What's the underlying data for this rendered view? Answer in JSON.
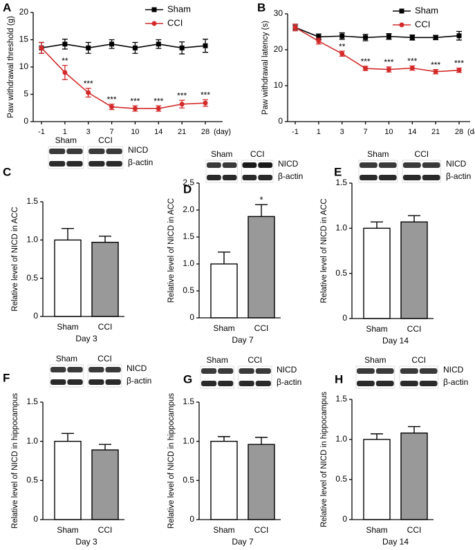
{
  "chart_data": [
    {
      "type": "line",
      "panel": "A",
      "ylabel": "Paw withdrawal threshold (g)",
      "xlabel": "(day)",
      "categories": [
        "-1",
        "1",
        "3",
        "7",
        "10",
        "14",
        "21",
        "28"
      ],
      "ylim": [
        0,
        20
      ],
      "yticks": [
        0,
        5,
        10,
        15,
        20
      ],
      "series": [
        {
          "name": "Sham",
          "color": "#000000",
          "marker": "square",
          "values": [
            13.5,
            14.2,
            13.5,
            14.2,
            13.5,
            14.2,
            13.5,
            13.9
          ],
          "errors": [
            1.0,
            0.9,
            1.0,
            0.8,
            1.0,
            0.8,
            1.1,
            1.2
          ]
        },
        {
          "name": "CCI",
          "color": "#d42a2a",
          "marker": "circle",
          "values": [
            13.5,
            9.0,
            5.3,
            2.7,
            2.4,
            2.4,
            3.2,
            3.4
          ],
          "errors": [
            1.0,
            1.3,
            0.8,
            0.5,
            0.5,
            0.5,
            0.7,
            0.6
          ],
          "significance": [
            null,
            "**",
            "***",
            "***",
            "***",
            "***",
            "***",
            "***"
          ]
        }
      ]
    },
    {
      "type": "line",
      "panel": "B",
      "ylabel": "Paw withdrawal latency (s)",
      "xlabel": "(day)",
      "categories": [
        "-1",
        "1",
        "3",
        "7",
        "10",
        "14",
        "21",
        "28"
      ],
      "ylim": [
        0,
        30
      ],
      "yticks": [
        0,
        10,
        20,
        30
      ],
      "series": [
        {
          "name": "Sham",
          "color": "#000000",
          "marker": "square",
          "values": [
            26.2,
            23.6,
            23.8,
            23.4,
            23.7,
            23.4,
            23.4,
            23.9
          ],
          "errors": [
            0.9,
            0.8,
            0.9,
            0.9,
            0.8,
            0.7,
            0.6,
            1.2
          ]
        },
        {
          "name": "CCI",
          "color": "#d42a2a",
          "marker": "circle",
          "values": [
            26.2,
            22.4,
            18.9,
            14.8,
            14.5,
            14.9,
            13.9,
            14.3
          ],
          "errors": [
            0.9,
            0.8,
            0.7,
            0.6,
            0.7,
            0.6,
            0.6,
            0.6
          ],
          "significance": [
            null,
            null,
            "**",
            "***",
            "***",
            "***",
            "***",
            "***"
          ]
        }
      ]
    },
    {
      "type": "bar",
      "panel": "C",
      "ylabel": "Relative level of NICD in ACC",
      "xlabel": "Day 3",
      "blot_groups": [
        "Sham",
        "CCI"
      ],
      "blot_bands": [
        "NICD",
        "β-actin"
      ],
      "categories": [
        "Sham",
        "CCI"
      ],
      "colors": [
        "#ffffff",
        "#999999"
      ],
      "values": [
        1.0,
        0.97
      ],
      "errors": [
        0.15,
        0.08
      ],
      "ylim": [
        0,
        1.5
      ],
      "yticks": [
        0,
        0.5,
        {
          "value": 1,
          "label": "1.0"
        },
        1.5
      ]
    },
    {
      "type": "bar",
      "panel": "D",
      "ylabel": "Relative level of NICD in ACC",
      "xlabel": "Day 7",
      "blot_groups": [
        "Sham",
        "CCI"
      ],
      "blot_bands": [
        "NICD",
        "β-actin"
      ],
      "categories": [
        "Sham",
        "CCI"
      ],
      "colors": [
        "#ffffff",
        "#999999"
      ],
      "values": [
        1.0,
        1.88
      ],
      "errors": [
        0.22,
        0.22
      ],
      "significance": [
        null,
        "*"
      ],
      "ylim": [
        0,
        2.5
      ],
      "yticks": [
        0,
        0.5,
        {
          "value": 1,
          "label": "1.0"
        },
        1.5,
        {
          "value": 2,
          "label": "2.0"
        },
        2.5
      ]
    },
    {
      "type": "bar",
      "panel": "E",
      "ylabel": "Relative level of NICD in ACC",
      "xlabel": "Day 14",
      "blot_groups": [
        "Sham",
        "CCI"
      ],
      "blot_bands": [
        "NICD",
        "β-actin"
      ],
      "categories": [
        "Sham",
        "CCI"
      ],
      "colors": [
        "#ffffff",
        "#999999"
      ],
      "values": [
        1.0,
        1.07
      ],
      "errors": [
        0.07,
        0.07
      ],
      "ylim": [
        0,
        1.5
      ],
      "yticks": [
        0,
        0.5,
        {
          "value": 1,
          "label": "1.0"
        },
        1.5
      ]
    },
    {
      "type": "bar",
      "panel": "F",
      "ylabel": "Relative level of NICD in hippocampus",
      "xlabel": "Day 3",
      "blot_groups": [
        "Sham",
        "CCI"
      ],
      "blot_bands": [
        "NICD",
        "β-actin"
      ],
      "categories": [
        "Sham",
        "CCI"
      ],
      "colors": [
        "#ffffff",
        "#999999"
      ],
      "values": [
        1.0,
        0.89
      ],
      "errors": [
        0.1,
        0.07
      ],
      "ylim": [
        0,
        1.5
      ],
      "yticks": [
        0,
        0.5,
        {
          "value": 1,
          "label": "1.0"
        },
        1.5
      ]
    },
    {
      "type": "bar",
      "panel": "G",
      "ylabel": "Relative level of NICD in hippocampus",
      "xlabel": "Day 7",
      "blot_groups": [
        "Sham",
        "CCI"
      ],
      "blot_bands": [
        "NICD",
        "β-actin"
      ],
      "categories": [
        "Sham",
        "CCI"
      ],
      "colors": [
        "#ffffff",
        "#999999"
      ],
      "values": [
        1.0,
        0.96
      ],
      "errors": [
        0.06,
        0.09
      ],
      "ylim": [
        0,
        1.5
      ],
      "yticks": [
        0,
        0.5,
        {
          "value": 1,
          "label": "1.0"
        },
        1.5
      ]
    },
    {
      "type": "bar",
      "panel": "H",
      "ylabel": "Relative level of NICD in hippocampus",
      "xlabel": "Day 14",
      "blot_groups": [
        "Sham",
        "CCI"
      ],
      "blot_bands": [
        "NICD",
        "β-actin"
      ],
      "categories": [
        "Sham",
        "CCI"
      ],
      "colors": [
        "#ffffff",
        "#999999"
      ],
      "values": [
        1.0,
        1.08
      ],
      "errors": [
        0.07,
        0.08
      ],
      "ylim": [
        0,
        1.5
      ],
      "yticks": [
        0,
        0.5,
        {
          "value": 1,
          "label": "1.0"
        },
        1.5
      ]
    }
  ]
}
